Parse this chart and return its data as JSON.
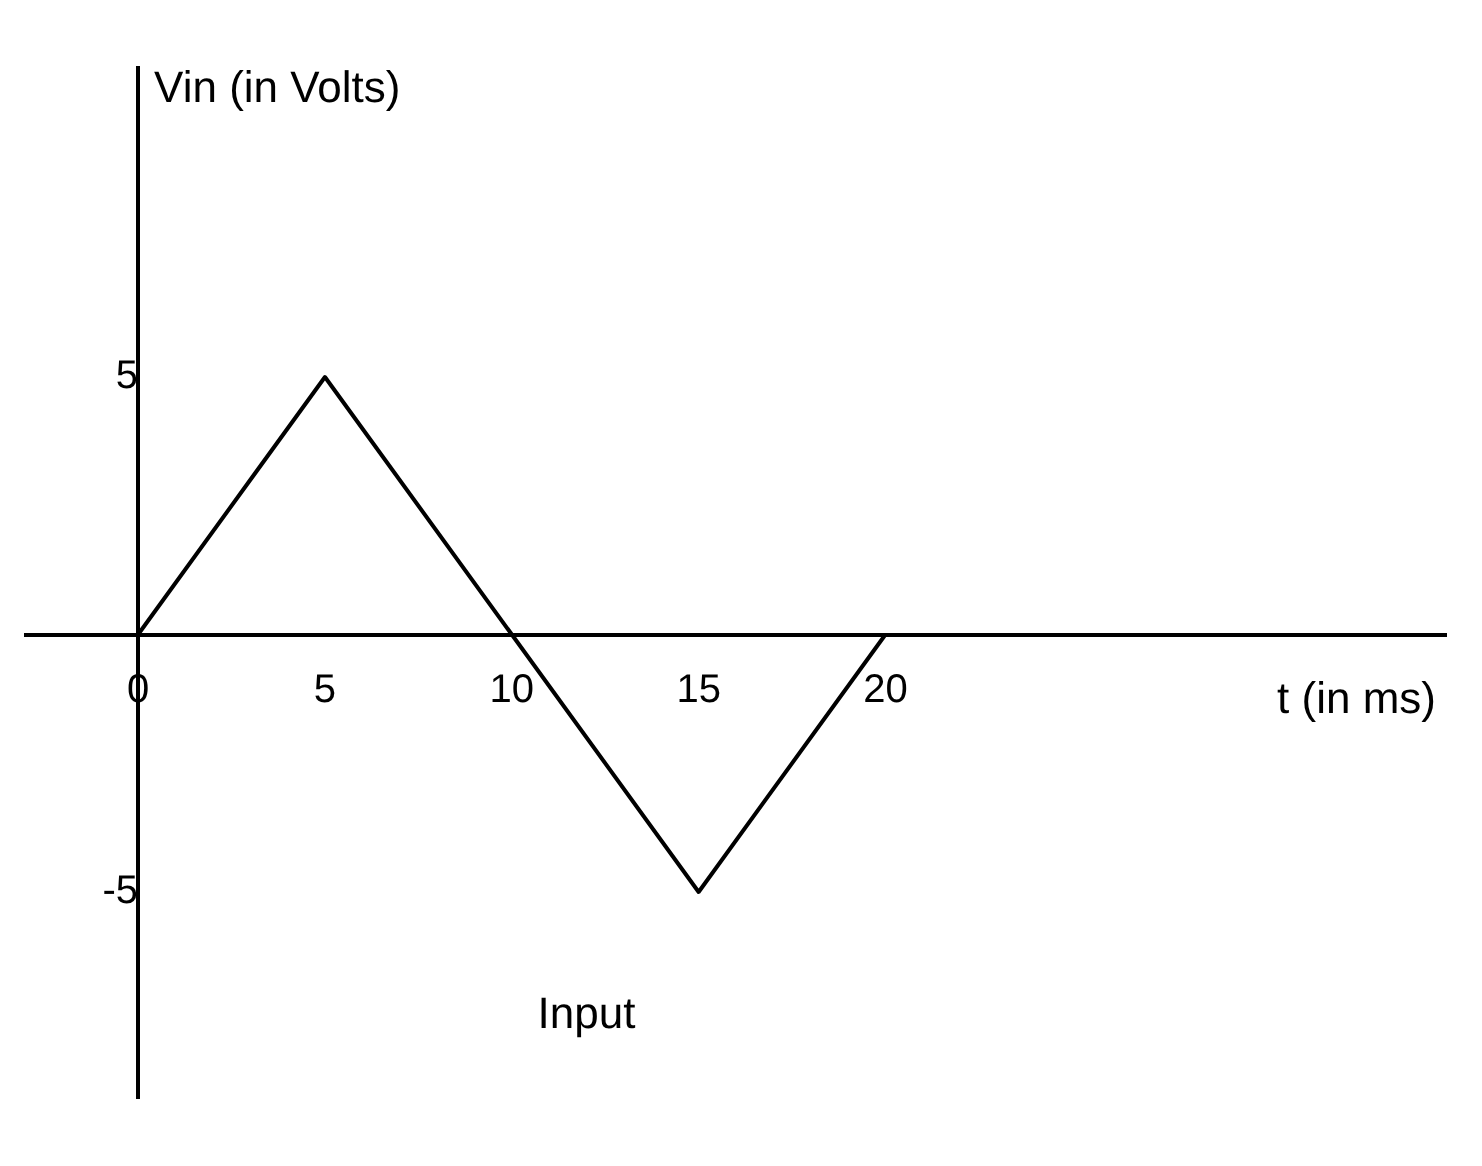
{
  "chart_data": {
    "type": "line",
    "xlabel": "t (in ms)",
    "ylabel": "Vin (in Volts)",
    "annotations": [
      "Input"
    ],
    "x": [
      0,
      5,
      10,
      15,
      20
    ],
    "series": [
      {
        "color": "#000000",
        "values": [
          0,
          5,
          0,
          -5,
          0
        ]
      }
    ],
    "xlim": [
      -3,
      35
    ],
    "ylim": [
      -9,
      11
    ],
    "xticks": [
      0,
      5,
      10,
      15,
      20
    ],
    "yticks": [
      -5,
      5
    ],
    "grid": false,
    "legend": false,
    "marker": "none",
    "line_style": "solid"
  }
}
